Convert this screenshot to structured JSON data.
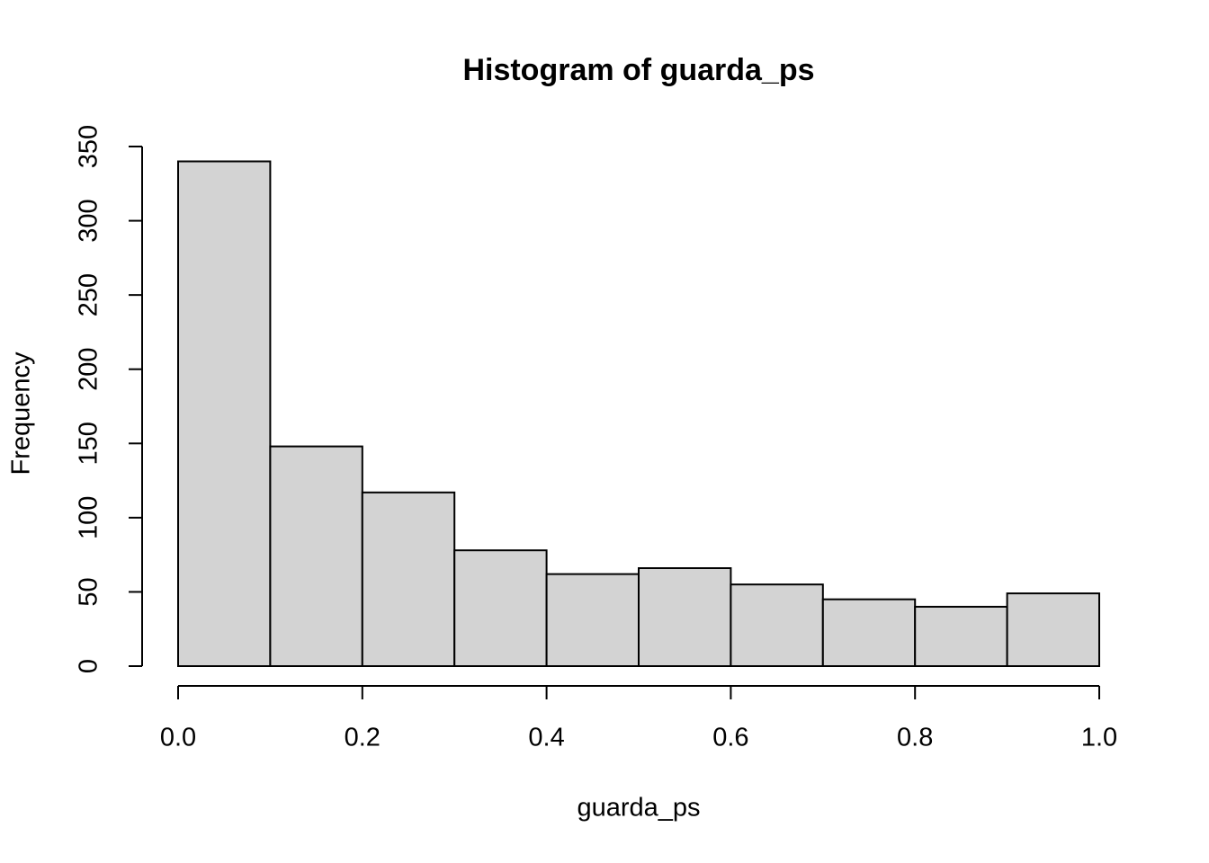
{
  "chart_data": {
    "type": "histogram",
    "title": "Histogram of guarda_ps",
    "x_label": "guarda_ps",
    "y_label": "Frequency",
    "bins": [
      0,
      0.1,
      0.2,
      0.3,
      0.4,
      0.5,
      0.6,
      0.7,
      0.8,
      0.9,
      1.0
    ],
    "counts": [
      340,
      148,
      117,
      78,
      62,
      66,
      55,
      45,
      40,
      49
    ],
    "color": "#d3d3d3",
    "edge_color": "#000000",
    "xlim": [
      0,
      1
    ],
    "ylim": [
      0,
      350
    ],
    "xticks": [
      {
        "value": 0,
        "label": "0.0"
      },
      0.2,
      0.4,
      0.6,
      0.8,
      {
        "value": 1,
        "label": "1.0"
      }
    ],
    "yticks": [
      0,
      50,
      100,
      150,
      200,
      250,
      300,
      350
    ],
    "grid": false
  }
}
